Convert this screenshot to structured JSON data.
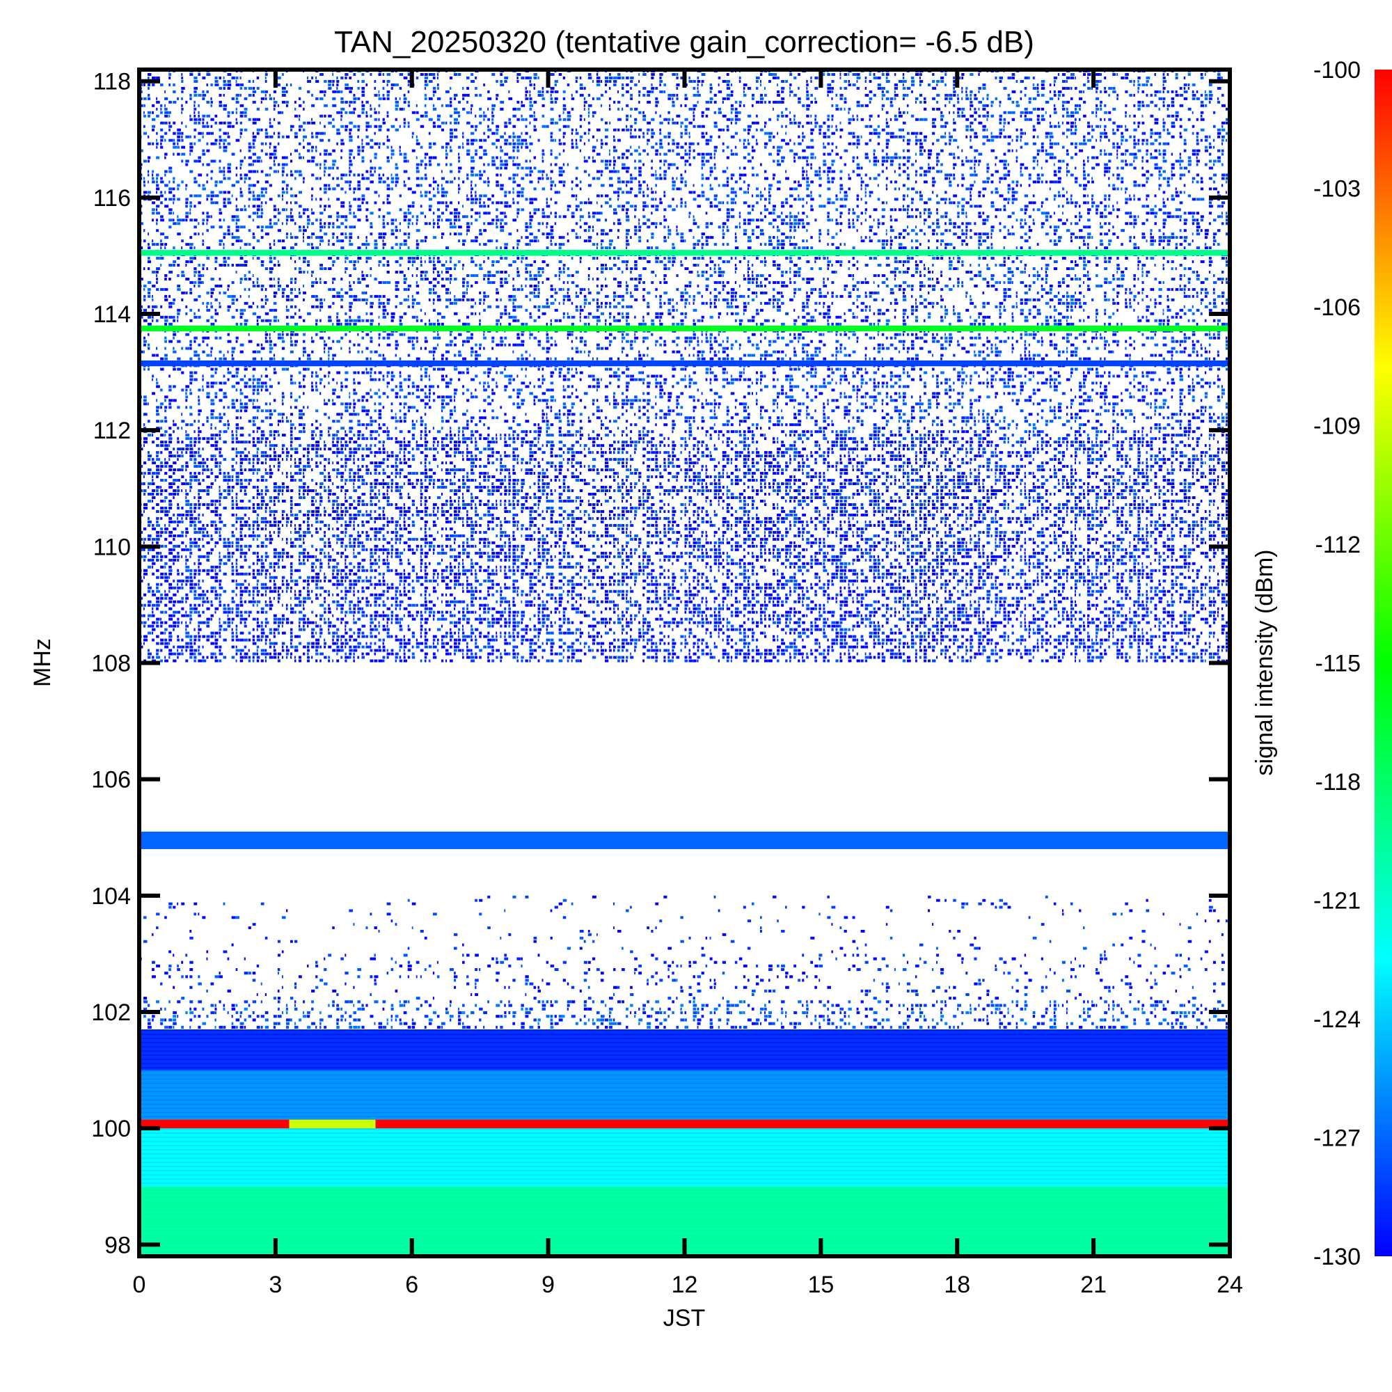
{
  "chart_data": {
    "type": "heatmap",
    "title": "TAN_20250320 (tentative gain_correction= -6.5 dB)",
    "xlabel": "JST",
    "ylabel": "MHz",
    "xlim": [
      0,
      24
    ],
    "ylim": [
      97.8,
      118.2
    ],
    "x_ticks": [
      "0",
      "3",
      "6",
      "9",
      "12",
      "15",
      "18",
      "21",
      "24"
    ],
    "y_ticks": [
      "98",
      "100",
      "102",
      "104",
      "106",
      "108",
      "110",
      "112",
      "114",
      "116",
      "118"
    ],
    "colorbar": {
      "label": "signal intensity (dBm)",
      "range": [
        -130,
        -100
      ],
      "ticks": [
        "-100",
        "-103",
        "-106",
        "-109",
        "-112",
        "-115",
        "-118",
        "-121",
        "-124",
        "-127",
        "-130"
      ],
      "colormap": [
        "#0000ff",
        "#0080ff",
        "#00ffff",
        "#00ff80",
        "#00ff00",
        "#80ff00",
        "#ffff00",
        "#ff8000",
        "#ff0000"
      ]
    },
    "bands": [
      {
        "freq_range": [
          97.8,
          99.0
        ],
        "intensity_dbm": -119.5,
        "pattern": "dense continuous"
      },
      {
        "freq_range": [
          99.0,
          100.0
        ],
        "intensity_dbm": -122.5,
        "pattern": "dense continuous"
      },
      {
        "freq_range": [
          100.0,
          100.15
        ],
        "intensity_dbm": -100,
        "pattern": "steady line",
        "note_range_jst": [
          3.3,
          5.2
        ],
        "note_intensity_dbm": -109
      },
      {
        "freq_range": [
          100.15,
          101.0
        ],
        "intensity_dbm": -125.5,
        "pattern": "dense continuous"
      },
      {
        "freq_range": [
          101.0,
          101.7
        ],
        "intensity_dbm": -128.5,
        "pattern": "dense continuous"
      },
      {
        "freq_range": [
          101.7,
          102.2
        ],
        "intensity_dbm": -128,
        "pattern": "moderate noise"
      },
      {
        "freq_range": [
          102.2,
          103.0
        ],
        "intensity_dbm": -129,
        "pattern": "sparse noise"
      },
      {
        "freq_range": [
          103.0,
          104.0
        ],
        "intensity_dbm": -129,
        "pattern": "very sparse"
      },
      {
        "freq_range": [
          104.8,
          105.1
        ],
        "intensity_dbm": -127,
        "pattern": "steady band"
      },
      {
        "freq_range": [
          108.0,
          112.0
        ],
        "intensity_dbm": -129,
        "pattern": "heavy noise"
      },
      {
        "freq_range": [
          112.0,
          118.2
        ],
        "intensity_dbm": -128.5,
        "pattern": "moderate noise"
      },
      {
        "freq_range": [
          113.1,
          113.2
        ],
        "intensity_dbm": -128,
        "pattern": "steady line"
      },
      {
        "freq_range": [
          113.7,
          113.8
        ],
        "intensity_dbm": -116,
        "pattern": "steady line"
      },
      {
        "freq_range": [
          115.0,
          115.1
        ],
        "intensity_dbm": -119,
        "pattern": "steady line"
      }
    ],
    "grid": false,
    "legend": "colorbar-right"
  }
}
